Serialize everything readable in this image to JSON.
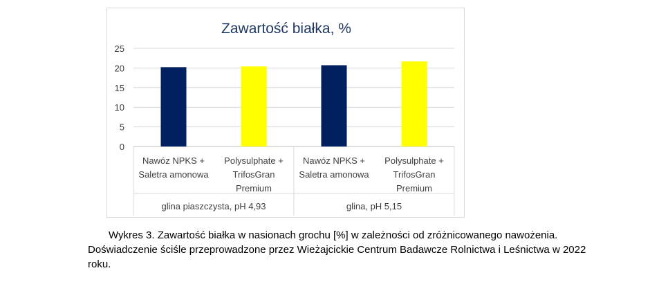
{
  "chart_data": {
    "type": "bar",
    "title": "Zawartość białka, %",
    "categories": [
      [
        "Nawóz NPKS +",
        "Saletra amonowa"
      ],
      [
        "Polysulphate +",
        "TrifosGran",
        "Premium"
      ],
      [
        "Nawóz NPKS +",
        "Saletra amonowa"
      ],
      [
        "Polysulphate +",
        "TrifosGran",
        "Premium"
      ]
    ],
    "groups": [
      "glina piaszczysta, pH 4,93",
      "glina, pH 5,15"
    ],
    "values": [
      20.2,
      20.4,
      20.7,
      21.7
    ],
    "colors": [
      "#002060",
      "#FFFF00",
      "#002060",
      "#FFFF00"
    ],
    "yticks": [
      "0",
      "5",
      "10",
      "15",
      "20",
      "25"
    ],
    "ylim": [
      0,
      25
    ],
    "grid": true,
    "legend": "none"
  },
  "caption": {
    "line1": "Wykres 3. Zawartość białka w nasionach grochu [%] w zależności od zróżnicowanego nawożenia.",
    "line2": "Doświadczenie ściśle przeprowadzone przez Wieżajcickie Centrum Badawcze Rolnictwa i Leśnictwa w 2022",
    "line3": "roku."
  }
}
